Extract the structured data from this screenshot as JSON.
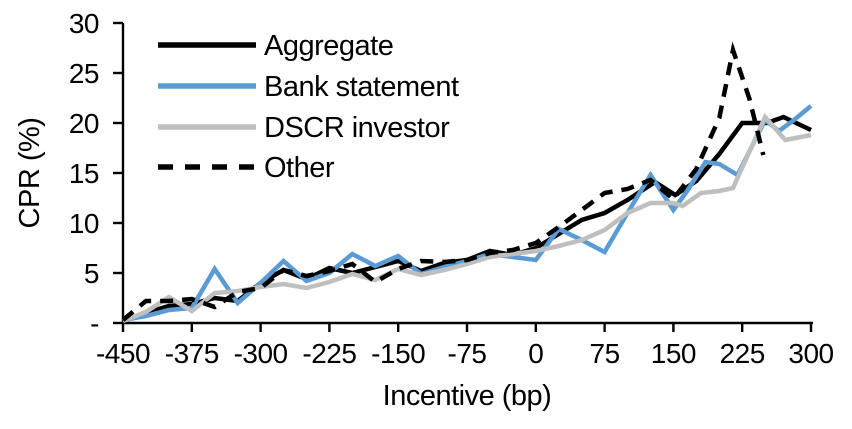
{
  "chart_data": {
    "type": "line",
    "title": "",
    "xlabel": "Incentive (bp)",
    "ylabel": "CPR (%)",
    "xlim": [
      -450,
      300
    ],
    "ylim": [
      0,
      30
    ],
    "x_ticks": [
      -450,
      -375,
      -300,
      -225,
      -150,
      -75,
      0,
      75,
      150,
      225,
      300
    ],
    "y_ticks": [
      0,
      5,
      10,
      15,
      20,
      25,
      30
    ],
    "y_tick_labels": [
      "-",
      "5",
      "10",
      "15",
      "20",
      "25",
      "30"
    ],
    "grid": false,
    "legend_position": "upper-left-inside",
    "background_color": "#FFFFFF",
    "axis_color": "#000000",
    "series": [
      {
        "name": "Aggregate",
        "color": "#000000",
        "dash": "solid",
        "points": [
          [
            -450,
            0.2
          ],
          [
            -425,
            1.0
          ],
          [
            -400,
            1.7
          ],
          [
            -375,
            1.9
          ],
          [
            -350,
            2.5
          ],
          [
            -325,
            2.2
          ],
          [
            -300,
            4.0
          ],
          [
            -275,
            5.3
          ],
          [
            -250,
            4.4
          ],
          [
            -225,
            5.5
          ],
          [
            -200,
            5.0
          ],
          [
            -175,
            5.6
          ],
          [
            -150,
            6.2
          ],
          [
            -125,
            5.2
          ],
          [
            -100,
            6.0
          ],
          [
            -75,
            6.3
          ],
          [
            -50,
            7.2
          ],
          [
            -25,
            6.8
          ],
          [
            0,
            7.5
          ],
          [
            25,
            8.9
          ],
          [
            50,
            10.3
          ],
          [
            75,
            11.0
          ],
          [
            100,
            12.3
          ],
          [
            130,
            14.1
          ],
          [
            152,
            12.8
          ],
          [
            175,
            14.2
          ],
          [
            200,
            16.9
          ],
          [
            225,
            20.0
          ],
          [
            252,
            20.0
          ],
          [
            270,
            20.6
          ],
          [
            300,
            19.3
          ]
        ]
      },
      {
        "name": "Bank statement",
        "color": "#5B9BD5",
        "dash": "solid",
        "points": [
          [
            -450,
            0.3
          ],
          [
            -425,
            0.7
          ],
          [
            -400,
            1.3
          ],
          [
            -375,
            1.5
          ],
          [
            -350,
            5.4
          ],
          [
            -325,
            2.0
          ],
          [
            -300,
            4.0
          ],
          [
            -275,
            6.2
          ],
          [
            -250,
            4.2
          ],
          [
            -225,
            5.0
          ],
          [
            -200,
            6.9
          ],
          [
            -175,
            5.7
          ],
          [
            -150,
            6.7
          ],
          [
            -125,
            4.9
          ],
          [
            -100,
            5.6
          ],
          [
            -75,
            6.2
          ],
          [
            -50,
            6.9
          ],
          [
            -25,
            6.6
          ],
          [
            0,
            6.3
          ],
          [
            25,
            9.4
          ],
          [
            50,
            8.3
          ],
          [
            75,
            7.1
          ],
          [
            100,
            11.0
          ],
          [
            125,
            14.8
          ],
          [
            150,
            11.3
          ],
          [
            165,
            13.2
          ],
          [
            185,
            16.1
          ],
          [
            200,
            15.9
          ],
          [
            220,
            14.8
          ],
          [
            250,
            20.3
          ],
          [
            265,
            19.2
          ],
          [
            280,
            20.2
          ],
          [
            300,
            21.7
          ]
        ]
      },
      {
        "name": "DSCR investor",
        "color": "#BFBFBF",
        "dash": "solid",
        "points": [
          [
            -450,
            0.2
          ],
          [
            -425,
            1.1
          ],
          [
            -400,
            2.6
          ],
          [
            -375,
            1.2
          ],
          [
            -350,
            3.0
          ],
          [
            -325,
            3.2
          ],
          [
            -300,
            3.6
          ],
          [
            -275,
            3.9
          ],
          [
            -250,
            3.5
          ],
          [
            -225,
            4.1
          ],
          [
            -200,
            4.9
          ],
          [
            -175,
            4.3
          ],
          [
            -150,
            5.4
          ],
          [
            -125,
            4.8
          ],
          [
            -100,
            5.3
          ],
          [
            -75,
            5.9
          ],
          [
            -50,
            6.6
          ],
          [
            -25,
            6.9
          ],
          [
            0,
            7.2
          ],
          [
            25,
            7.7
          ],
          [
            50,
            8.3
          ],
          [
            75,
            9.3
          ],
          [
            100,
            11.0
          ],
          [
            125,
            12.0
          ],
          [
            150,
            12.0
          ],
          [
            160,
            11.7
          ],
          [
            180,
            13.0
          ],
          [
            200,
            13.2
          ],
          [
            215,
            13.5
          ],
          [
            250,
            20.6
          ],
          [
            272,
            18.3
          ],
          [
            300,
            18.8
          ]
        ]
      },
      {
        "name": "Other",
        "color": "#000000",
        "dash": "dashed",
        "points": [
          [
            -450,
            0.3
          ],
          [
            -425,
            2.2
          ],
          [
            -400,
            2.2
          ],
          [
            -375,
            2.4
          ],
          [
            -350,
            1.6
          ],
          [
            -325,
            3.1
          ],
          [
            -300,
            3.5
          ],
          [
            -275,
            5.3
          ],
          [
            -250,
            4.7
          ],
          [
            -225,
            5.2
          ],
          [
            -200,
            5.9
          ],
          [
            -175,
            4.1
          ],
          [
            -150,
            5.4
          ],
          [
            -125,
            6.2
          ],
          [
            -100,
            6.1
          ],
          [
            -75,
            6.3
          ],
          [
            -50,
            7.0
          ],
          [
            -25,
            7.3
          ],
          [
            0,
            8.0
          ],
          [
            25,
            9.6
          ],
          [
            50,
            11.3
          ],
          [
            75,
            13.0
          ],
          [
            100,
            13.4
          ],
          [
            125,
            14.3
          ],
          [
            150,
            12.4
          ],
          [
            175,
            15.4
          ],
          [
            200,
            20.5
          ],
          [
            215,
            27.3
          ],
          [
            233,
            22.4
          ],
          [
            248,
            16.8
          ]
        ]
      }
    ]
  }
}
